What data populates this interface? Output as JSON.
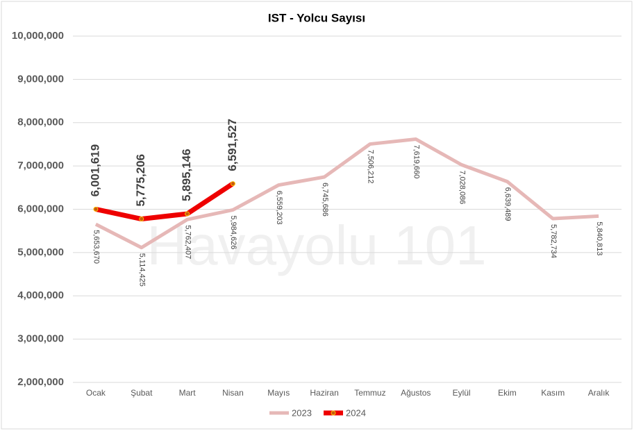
{
  "chart_data": {
    "type": "line",
    "title": "IST - Yolcu Sayısı",
    "watermark": "Havayolu 101",
    "categories": [
      "Ocak",
      "Şubat",
      "Mart",
      "Nisan",
      "Mayıs",
      "Haziran",
      "Temmuz",
      "Ağustos",
      "Eylül",
      "Ekim",
      "Kasım",
      "Aralık"
    ],
    "series": [
      {
        "name": "2023",
        "color": "#e6b8b7",
        "values": [
          5653670,
          5114425,
          5762407,
          5984626,
          6559203,
          6745686,
          7506212,
          7619660,
          7028086,
          6639489,
          5782734,
          5840813
        ],
        "value_labels": [
          "5,653,670",
          "5,114,425",
          "5,762,407",
          "5,984,626",
          "6,559,203",
          "6,745,686",
          "7,506,212",
          "7,619,660",
          "7,028,086",
          "6,639,489",
          "5,782,734",
          "5,840,813"
        ]
      },
      {
        "name": "2024",
        "color": "#ee0000",
        "values": [
          6001619,
          5775206,
          5895146,
          6591527,
          null,
          null,
          null,
          null,
          null,
          null,
          null,
          null
        ],
        "value_labels": [
          "6,001,619",
          "5,775,206",
          "5,895,146",
          "6,591,527",
          null,
          null,
          null,
          null,
          null,
          null,
          null,
          null
        ]
      }
    ],
    "ylim": [
      2000000,
      10000000
    ],
    "yticks": [
      {
        "value": 2000000,
        "label": "2,000,000"
      },
      {
        "value": 3000000,
        "label": "3,000,000"
      },
      {
        "value": 4000000,
        "label": "4,000,000"
      },
      {
        "value": 5000000,
        "label": "5,000,000"
      },
      {
        "value": 6000000,
        "label": "6,000,000"
      },
      {
        "value": 7000000,
        "label": "7,000,000"
      },
      {
        "value": 8000000,
        "label": "8,000,000"
      },
      {
        "value": 9000000,
        "label": "9,000,000"
      },
      {
        "value": 10000000,
        "label": "10,000,000"
      }
    ],
    "grid": true,
    "legend": "bottom"
  }
}
